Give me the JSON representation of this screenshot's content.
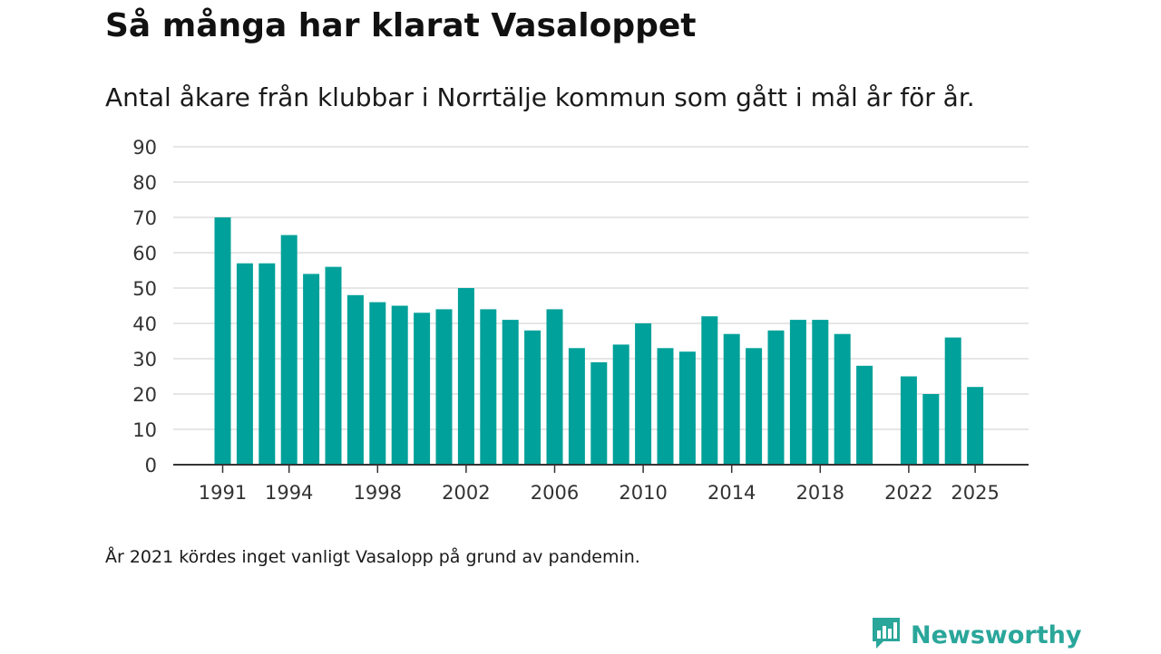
{
  "header": {
    "title": "Så många har klarat Vasaloppet",
    "subtitle": "Antal åkare från klubbar i Norrtälje kommun som gått i mål år för år."
  },
  "footnote": "År 2021 kördes inget vanligt Vasalopp på grund av pandemin.",
  "brand": {
    "name": "Newsworthy",
    "icon": "newsworthy-logo-icon"
  },
  "colors": {
    "bar": "#00a19a",
    "grid": "#dddddd",
    "axis": "#333333",
    "brand": "#2aa69a"
  },
  "chart_data": {
    "type": "bar",
    "title": "Så många har klarat Vasaloppet",
    "xlabel": "",
    "ylabel": "",
    "ylim": [
      0,
      90
    ],
    "yticks": [
      0,
      10,
      20,
      30,
      40,
      50,
      60,
      70,
      80,
      90
    ],
    "xticks": [
      "1991",
      "1994",
      "1998",
      "2002",
      "2006",
      "2010",
      "2014",
      "2018",
      "2022",
      "2025"
    ],
    "grid": true,
    "categories": [
      "1991",
      "1992",
      "1993",
      "1994",
      "1995",
      "1996",
      "1997",
      "1998",
      "1999",
      "2000",
      "2001",
      "2002",
      "2003",
      "2004",
      "2005",
      "2006",
      "2007",
      "2008",
      "2009",
      "2010",
      "2011",
      "2012",
      "2013",
      "2014",
      "2015",
      "2016",
      "2017",
      "2018",
      "2019",
      "2020",
      "2021",
      "2022",
      "2023",
      "2024",
      "2025"
    ],
    "values": [
      70,
      57,
      57,
      65,
      54,
      56,
      48,
      46,
      45,
      43,
      44,
      50,
      44,
      41,
      38,
      44,
      33,
      29,
      34,
      40,
      33,
      32,
      42,
      37,
      33,
      38,
      41,
      41,
      37,
      28,
      null,
      25,
      20,
      36,
      22
    ]
  }
}
